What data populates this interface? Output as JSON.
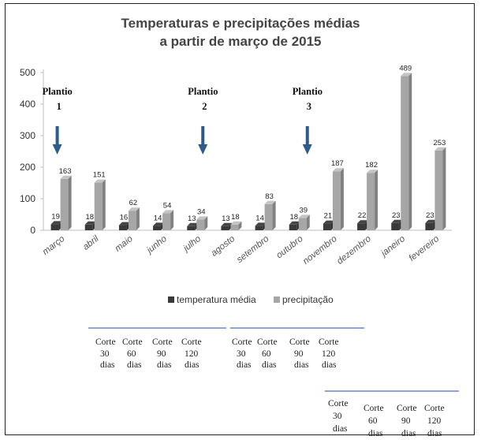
{
  "chart_data": {
    "type": "bar",
    "title": [
      "Temperaturas e precipitações médias",
      "a partir de março de 2015"
    ],
    "categories": [
      "março",
      "abril",
      "maio",
      "junho",
      "julho",
      "agosto",
      "setembro",
      "outubro",
      "novembro",
      "dezembro",
      "janeiro",
      "fevereiro"
    ],
    "series": [
      {
        "name": "temperatura média",
        "color": "#3a3a3a",
        "values": [
          19,
          18,
          16,
          14,
          13,
          13,
          14,
          18,
          21,
          22,
          23,
          23
        ]
      },
      {
        "name": "precipitação",
        "color": "#a6a6a6",
        "values": [
          163,
          151,
          62,
          54,
          34,
          18,
          83,
          39,
          187,
          182,
          489,
          253
        ]
      }
    ],
    "yticks": [
      0,
      100,
      200,
      300,
      400,
      500
    ],
    "ylim": [
      0,
      500
    ],
    "legend_position": "bottom",
    "annotations": [
      {
        "label": "Plantio",
        "number": "1",
        "category": "março"
      },
      {
        "label": "Plantio",
        "number": "2",
        "category": "julho"
      },
      {
        "label": "Plantio",
        "number": "3",
        "category": "outubro"
      }
    ]
  },
  "corte_groups": [
    {
      "items": [
        [
          "Corte",
          "30",
          "dias"
        ],
        [
          "Corte",
          "60",
          "dias"
        ],
        [
          "Corte",
          "90",
          "dias"
        ],
        [
          "Corte",
          "120",
          "dias"
        ]
      ]
    },
    {
      "items": [
        [
          "Corte",
          "30",
          "dias"
        ],
        [
          "Corte",
          "60",
          "dias"
        ],
        [
          "Corte",
          "90",
          "dias"
        ],
        [
          "Corte",
          "120",
          "dias"
        ]
      ]
    },
    {
      "items": [
        [
          "Corte",
          "30",
          "dias"
        ],
        [
          "Corte",
          "60",
          "dias"
        ],
        [
          "Corte",
          "90",
          "dias"
        ],
        [
          "Corte",
          "120",
          "dias"
        ]
      ]
    }
  ]
}
